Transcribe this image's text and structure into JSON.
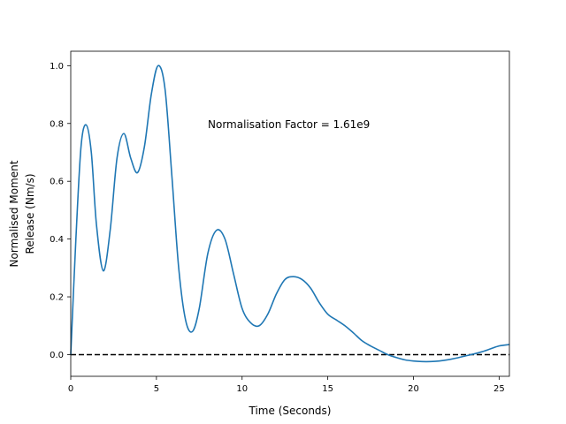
{
  "chart_data": {
    "type": "line",
    "title": "",
    "xlabel": "Time (Seconds)",
    "ylabel_lines": [
      "Normalised Moment",
      "Release (Nm/s)"
    ],
    "xlim": [
      0,
      25.6
    ],
    "ylim": [
      -0.075,
      1.05
    ],
    "xticks": [
      0,
      5,
      10,
      15,
      20,
      25
    ],
    "yticks": [
      0.0,
      0.2,
      0.4,
      0.6,
      0.8,
      1.0
    ],
    "xtick_labels": [
      "0",
      "5",
      "10",
      "15",
      "20",
      "25"
    ],
    "ytick_labels": [
      "0.0",
      "0.2",
      "0.4",
      "0.6",
      "0.8",
      "1.0"
    ],
    "grid": false,
    "annotation": {
      "text": "Normalisation Factor = 1.61e9",
      "x": 8.0,
      "y": 0.8
    },
    "reference_line": {
      "y": 0.0,
      "style": "dashed",
      "color": "#000000"
    },
    "series": [
      {
        "color": "#1f77b4",
        "x": [
          0.0,
          0.3,
          0.6,
          0.9,
          1.2,
          1.5,
          1.9,
          2.3,
          2.7,
          3.1,
          3.5,
          3.9,
          4.3,
          4.7,
          5.1,
          5.5,
          5.9,
          6.3,
          6.7,
          7.1,
          7.5,
          8.0,
          8.5,
          9.0,
          9.5,
          10.0,
          10.5,
          11.0,
          11.5,
          12.0,
          12.5,
          13.0,
          13.5,
          14.0,
          14.5,
          15.0,
          15.5,
          16.0,
          16.5,
          17.0,
          17.5,
          18.0,
          18.5,
          19.0,
          19.5,
          20.0,
          20.5,
          21.0,
          21.5,
          22.0,
          22.5,
          23.0,
          23.5,
          24.0,
          24.5,
          25.0,
          25.6
        ],
        "y": [
          0.0,
          0.4,
          0.72,
          0.795,
          0.7,
          0.45,
          0.29,
          0.43,
          0.68,
          0.765,
          0.68,
          0.63,
          0.72,
          0.9,
          1.0,
          0.92,
          0.62,
          0.3,
          0.12,
          0.08,
          0.16,
          0.35,
          0.43,
          0.4,
          0.28,
          0.16,
          0.11,
          0.1,
          0.14,
          0.21,
          0.26,
          0.27,
          0.26,
          0.23,
          0.18,
          0.14,
          0.12,
          0.1,
          0.075,
          0.048,
          0.03,
          0.015,
          0.0,
          -0.01,
          -0.018,
          -0.022,
          -0.024,
          -0.024,
          -0.022,
          -0.018,
          -0.012,
          -0.005,
          0.002,
          0.01,
          0.02,
          0.03,
          0.035
        ]
      }
    ]
  }
}
